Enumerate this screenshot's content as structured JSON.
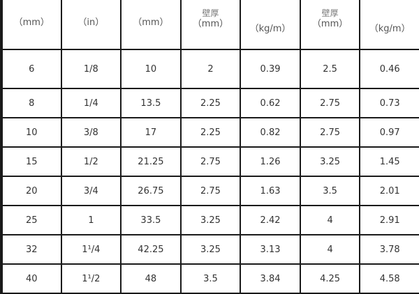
{
  "header": {
    "cols": [
      {
        "unit": "（mm）"
      },
      {
        "unit": "（in）"
      },
      {
        "unit": "（mm）"
      },
      {
        "label": "壁厚",
        "unit": "（mm）"
      },
      {
        "unit": "（kg/m）"
      },
      {
        "label": "壁厚",
        "unit": "（mm）"
      },
      {
        "unit": "（kg/m）"
      }
    ]
  },
  "rows": [
    [
      "6",
      "1/8",
      "10",
      "2",
      "0.39",
      "2.5",
      "0.46"
    ],
    [
      "8",
      "1/4",
      "13.5",
      "2.25",
      "0.62",
      "2.75",
      "0.73"
    ],
    [
      "10",
      "3/8",
      "17",
      "2.25",
      "0.82",
      "2.75",
      "0.97"
    ],
    [
      "15",
      "1/2",
      "21.25",
      "2.75",
      "1.26",
      "3.25",
      "1.45"
    ],
    [
      "20",
      "3/4",
      "26.75",
      "2.75",
      "1.63",
      "3.5",
      "2.01"
    ],
    [
      "25",
      "1",
      "33.5",
      "3.25",
      "2.42",
      "4",
      "2.91"
    ],
    [
      "32",
      "1¹/4",
      "42.25",
      "3.25",
      "3.13",
      "4",
      "3.78"
    ],
    [
      "40",
      "1¹/2",
      "48",
      "3.5",
      "3.84",
      "4.25",
      "4.58"
    ]
  ]
}
